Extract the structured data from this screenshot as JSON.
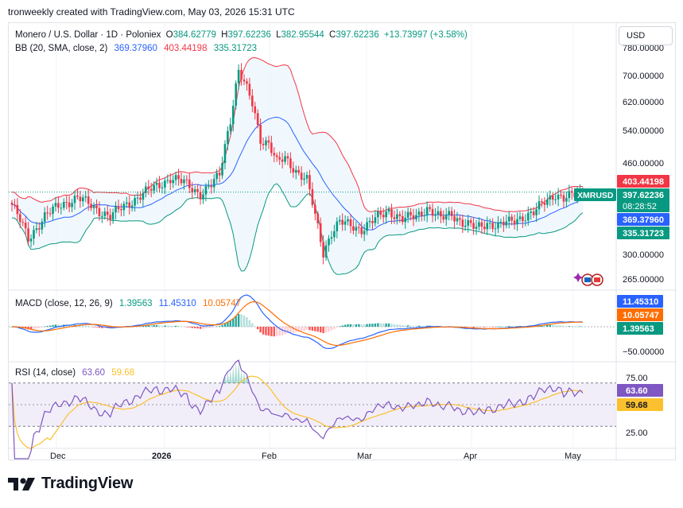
{
  "header": {
    "published": "tronweekly created with TradingView.com, May 03, 2026 15:31 UTC",
    "currency_button": "USD"
  },
  "footer": {
    "brand": "TradingView"
  },
  "colors": {
    "up": "#089981",
    "down": "#f23645",
    "bb_upper": "#f23645",
    "bb_basis": "#2962ff",
    "bb_lower": "#089981",
    "bb_fill": "#e3f2fd",
    "macd": "#2962ff",
    "signal": "#ff6d00",
    "rsi": "#7e57c2",
    "rsi_ma": "#fbc02d",
    "rsi_band": "#ede7f6"
  },
  "chart_data": [
    {
      "type": "candlestick",
      "legend": {
        "symbol": "Monero / U.S. Dollar · 1D · Poloniex",
        "open_label": "O",
        "open": "384.62779",
        "high_label": "H",
        "high": "397.62236",
        "low_label": "L",
        "low": "382.95544",
        "close_label": "C",
        "close": "397.62236",
        "change": "+13.73997 (+3.58%)",
        "bb_label": "BB (20, SMA, close, 2)",
        "bb_basis": "369.37960",
        "bb_upper": "403.44198",
        "bb_lower": "335.31723"
      },
      "y_axis_ticks": [
        "780.00000",
        "700.00000",
        "620.00000",
        "540.00000",
        "460.00000",
        "300.00000",
        "265.00000"
      ],
      "price_badges": {
        "symbol": "XMRUSD",
        "upper": "403.44198",
        "last_price": "397.62236",
        "countdown": "08:28:52",
        "basis": "369.37960",
        "lower": "335.31723"
      },
      "x_axis_labels": [
        "Dec",
        "2026",
        "Feb",
        "Mar",
        "Apr",
        "May"
      ],
      "anchors": [
        {
          "x": 0,
          "c": 375
        },
        {
          "x": 6,
          "c": 320
        },
        {
          "x": 12,
          "c": 355
        },
        {
          "x": 18,
          "c": 375
        },
        {
          "x": 24,
          "c": 388
        },
        {
          "x": 30,
          "c": 370
        },
        {
          "x": 36,
          "c": 355
        },
        {
          "x": 42,
          "c": 375
        },
        {
          "x": 48,
          "c": 395
        },
        {
          "x": 52,
          "c": 405
        },
        {
          "x": 58,
          "c": 425
        },
        {
          "x": 63,
          "c": 415
        },
        {
          "x": 69,
          "c": 395
        },
        {
          "x": 73,
          "c": 410
        },
        {
          "x": 76,
          "c": 430
        },
        {
          "x": 80,
          "c": 560
        },
        {
          "x": 83,
          "c": 700
        },
        {
          "x": 85,
          "c": 660
        },
        {
          "x": 88,
          "c": 600
        },
        {
          "x": 91,
          "c": 510
        },
        {
          "x": 94,
          "c": 500
        },
        {
          "x": 97,
          "c": 455
        },
        {
          "x": 100,
          "c": 465
        },
        {
          "x": 104,
          "c": 440
        },
        {
          "x": 108,
          "c": 420
        },
        {
          "x": 111,
          "c": 355
        },
        {
          "x": 114,
          "c": 300
        },
        {
          "x": 117,
          "c": 330
        },
        {
          "x": 120,
          "c": 345
        },
        {
          "x": 124,
          "c": 340
        },
        {
          "x": 128,
          "c": 335
        },
        {
          "x": 133,
          "c": 350
        },
        {
          "x": 138,
          "c": 365
        },
        {
          "x": 143,
          "c": 350
        },
        {
          "x": 148,
          "c": 355
        },
        {
          "x": 152,
          "c": 370
        },
        {
          "x": 157,
          "c": 350
        },
        {
          "x": 161,
          "c": 360
        },
        {
          "x": 165,
          "c": 345
        },
        {
          "x": 170,
          "c": 335
        },
        {
          "x": 174,
          "c": 345
        },
        {
          "x": 178,
          "c": 340
        },
        {
          "x": 182,
          "c": 345
        },
        {
          "x": 187,
          "c": 355
        },
        {
          "x": 191,
          "c": 360
        },
        {
          "x": 195,
          "c": 380
        },
        {
          "x": 199,
          "c": 395
        },
        {
          "x": 202,
          "c": 385
        },
        {
          "x": 206,
          "c": 392
        },
        {
          "x": 209,
          "c": 397.6
        }
      ]
    },
    {
      "type": "line",
      "legend": {
        "label": "MACD (close, 12, 26, 9)",
        "histogram": "1.39563",
        "macd": "11.45310",
        "signal": "10.05747"
      },
      "y_axis_ticks": [
        "−50.00000"
      ],
      "badges": {
        "macd": "11.45310",
        "signal": "10.05747",
        "histogram": "1.39563"
      }
    },
    {
      "type": "line",
      "legend": {
        "label": "RSI (14, close)",
        "rsi": "63.60",
        "rsi_ma": "59.68"
      },
      "y_axis_ticks": [
        "75.00",
        "25.00"
      ],
      "badges": {
        "rsi": "63.60",
        "rsi_ma": "59.68"
      }
    }
  ]
}
